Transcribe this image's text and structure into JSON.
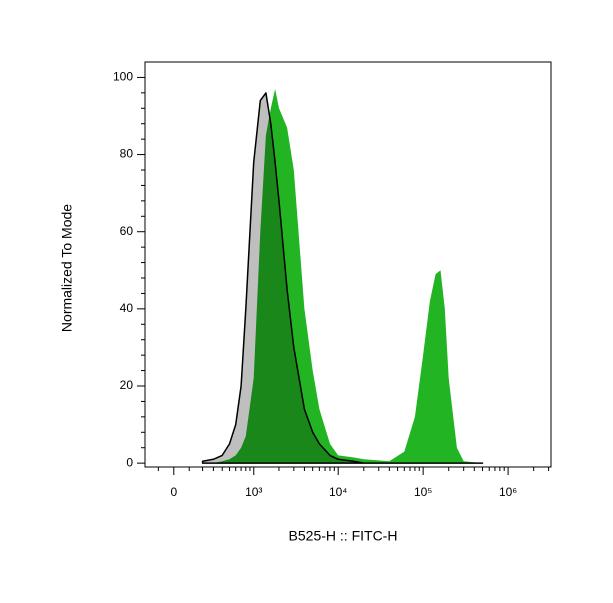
{
  "chart_data": {
    "type": "histogram-overlay",
    "xlabel": "B525-H :: FITC-H",
    "ylabel": "Normalized To Mode",
    "xscale": "biexponential",
    "xlim": [
      -200,
      3200000
    ],
    "ylim": [
      -1,
      104
    ],
    "xticks": [
      0,
      {
        "value": 1000,
        "label": "10³"
      },
      {
        "value": 10000,
        "label": "10⁴"
      },
      {
        "value": 100000,
        "label": "10⁵"
      },
      {
        "value": 1000000,
        "label": "10⁶"
      }
    ],
    "xminorticks": [
      -100,
      100,
      200,
      300,
      400,
      500,
      600,
      700,
      800,
      900,
      2000,
      3000,
      4000,
      5000,
      6000,
      7000,
      8000,
      9000,
      20000,
      30000,
      40000,
      50000,
      60000,
      70000,
      80000,
      90000,
      200000,
      300000,
      400000,
      500000,
      600000,
      700000,
      800000,
      900000,
      2000000,
      3000000
    ],
    "yticks": [
      0,
      20,
      40,
      60,
      80,
      100
    ],
    "yminorticks": [
      4,
      8,
      12,
      16,
      24,
      28,
      32,
      36,
      44,
      48,
      52,
      56,
      64,
      68,
      72,
      76,
      84,
      88,
      92,
      96
    ],
    "x": [
      200,
      300,
      400,
      500,
      600,
      700,
      800,
      1000,
      1200,
      1400,
      1600,
      1800,
      2000,
      2500,
      3000,
      4000,
      5000,
      6000,
      8000,
      10000,
      15000,
      20000,
      40000,
      60000,
      80000,
      100000,
      120000,
      140000,
      160000,
      180000,
      200000,
      250000,
      300000,
      500000
    ],
    "series": [
      {
        "color": "#22b422",
        "values": [
          0,
          0,
          0.5,
          1,
          2,
          4,
          7,
          22,
          60,
          85,
          92,
          97,
          92,
          87,
          76,
          40,
          24,
          14,
          5,
          2,
          1.5,
          1,
          0.5,
          3,
          12,
          28,
          42,
          49,
          50,
          40,
          22,
          4,
          0.5,
          0
        ]
      },
      {
        "color": "#000000",
        "values": [
          0.5,
          1,
          2,
          5,
          10,
          20,
          40,
          78,
          94,
          96,
          88,
          78,
          68,
          45,
          30,
          14,
          8,
          5,
          2,
          1,
          0.5,
          0,
          0,
          0,
          0,
          0,
          0,
          0,
          0,
          0,
          0,
          0,
          0,
          0
        ]
      }
    ]
  }
}
